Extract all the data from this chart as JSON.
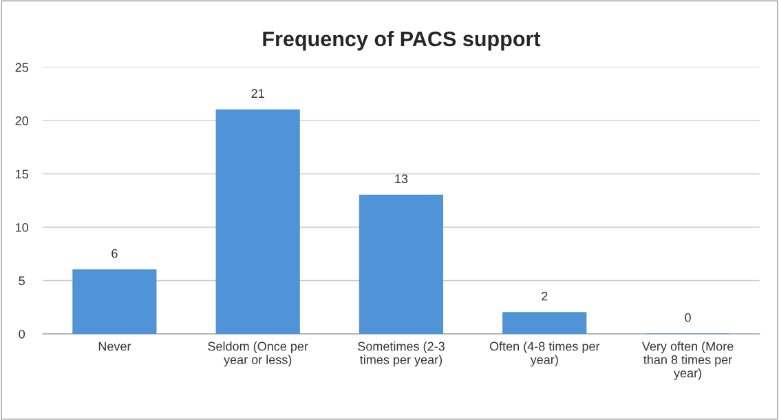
{
  "chart_data": {
    "type": "bar",
    "title": "Frequency of PACS support",
    "categories": [
      "Never",
      "Seldom (Once per\nyear or less)",
      "Sometimes (2-3\ntimes per year)",
      "Often (4-8 times per\nyear)",
      "Very often (More\nthan 8 times per\nyear)"
    ],
    "values": [
      6,
      21,
      13,
      2,
      0
    ],
    "color": "#5093d6",
    "ylim": [
      0,
      25
    ],
    "yticks": [
      0,
      5,
      10,
      15,
      20,
      25
    ],
    "grid": "y",
    "data_labels": true
  }
}
